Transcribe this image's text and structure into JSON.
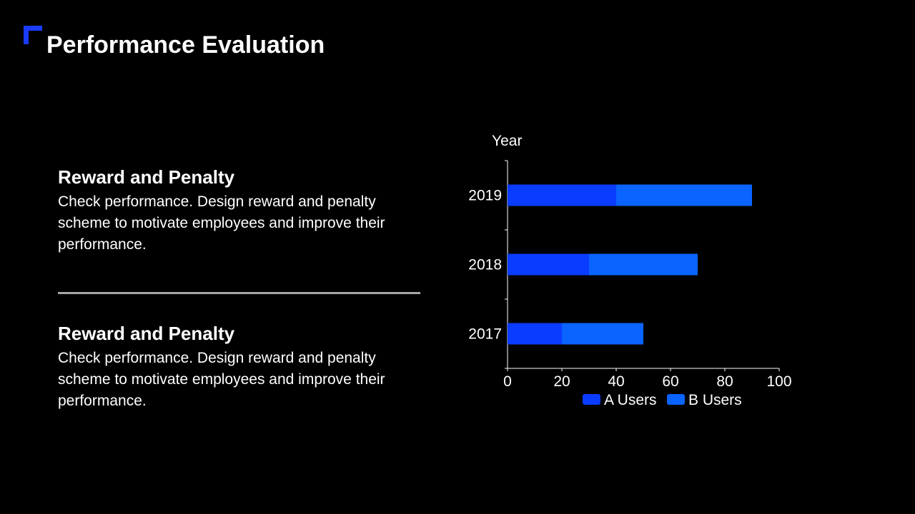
{
  "slide": {
    "title": "Performance Evaluation",
    "accent_color": "#1a3cff"
  },
  "sections": [
    {
      "heading": "Reward and Penalty",
      "body": "Check performance. Design reward and penalty scheme to motivate employees and improve their performance."
    },
    {
      "heading": "Reward and Penalty",
      "body": "Check performance. Design reward and penalty scheme to motivate employees and improve their performance."
    }
  ],
  "chart_data": {
    "type": "bar",
    "orientation": "horizontal",
    "stacked": true,
    "ylabel": "Year",
    "xlabel": "",
    "categories": [
      "2017",
      "2018",
      "2019"
    ],
    "series": [
      {
        "name": "A Users",
        "values": [
          20,
          30,
          40
        ],
        "color": "#0a3cff"
      },
      {
        "name": "B Users",
        "values": [
          30,
          40,
          50
        ],
        "color": "#0a64ff"
      }
    ],
    "xlim": [
      0,
      100
    ],
    "xticks": [
      0,
      20,
      40,
      60,
      80,
      100
    ],
    "grid": false,
    "legend": "bottom"
  }
}
